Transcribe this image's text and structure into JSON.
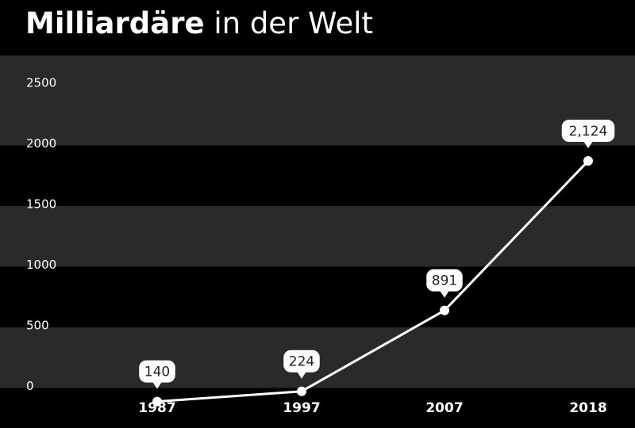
{
  "title": {
    "bold": "Milliardäre",
    "rest": " in der Welt"
  },
  "colors": {
    "background": "#000000",
    "band_light": "#2a2a2a",
    "band_dark": "#000000",
    "line": "#ffffff",
    "text": "#ffffff",
    "label_bubble": "#ffffff",
    "label_text": "#222222"
  },
  "chart_data": {
    "type": "line",
    "title": "Milliardäre in der Welt",
    "xlabel": "",
    "ylabel": "",
    "x": [
      "1987",
      "1997",
      "2007",
      "2018"
    ],
    "x_positions": [
      1987,
      1997,
      2007,
      2018
    ],
    "series": [
      {
        "values": [
          140,
          224,
          891,
          2124
        ],
        "labels": [
          "140",
          "224",
          "891",
          "2,124"
        ]
      }
    ],
    "ylim": [
      0,
      2500
    ],
    "yticks": [
      0,
      500,
      1000,
      1500,
      2000,
      2500
    ],
    "ytick_labels": [
      "0",
      "500",
      "1000",
      "1500",
      "2000",
      "2500"
    ],
    "grid": "alternating horizontal bands",
    "legend": "none"
  }
}
